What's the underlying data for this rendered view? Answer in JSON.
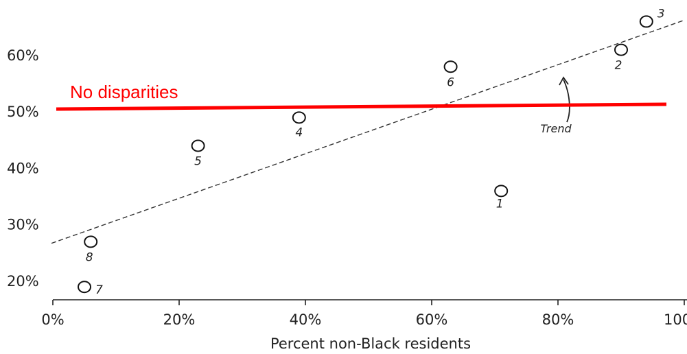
{
  "chart_data": {
    "type": "scatter",
    "title": "",
    "xlabel": "Percent non-Black residents",
    "ylabel": "",
    "xlim": [
      0,
      100
    ],
    "ylim": [
      15,
      68
    ],
    "x_ticks": [
      {
        "value": 0,
        "label": "0%"
      },
      {
        "value": 20,
        "label": "20%"
      },
      {
        "value": 40,
        "label": "40%"
      },
      {
        "value": 60,
        "label": "60%"
      },
      {
        "value": 80,
        "label": "80%"
      },
      {
        "value": 100,
        "label": "100%"
      }
    ],
    "y_ticks": [
      {
        "value": 20,
        "label": "20%"
      },
      {
        "value": 30,
        "label": "30%"
      },
      {
        "value": 40,
        "label": "40%"
      },
      {
        "value": 50,
        "label": "50%"
      },
      {
        "value": 60,
        "label": "60%"
      }
    ],
    "points": [
      {
        "label": "1",
        "x": 71,
        "y": 36
      },
      {
        "label": "2",
        "x": 90,
        "y": 61
      },
      {
        "label": "3",
        "x": 94,
        "y": 66
      },
      {
        "label": "4",
        "x": 39,
        "y": 49
      },
      {
        "label": "5",
        "x": 23,
        "y": 44
      },
      {
        "label": "6",
        "x": 63,
        "y": 58
      },
      {
        "label": "7",
        "x": 5,
        "y": 19
      },
      {
        "label": "8",
        "x": 6,
        "y": 27
      }
    ],
    "trend_line": {
      "label": "Trend",
      "x": [
        0,
        100
      ],
      "y": [
        26,
        66
      ],
      "style": "dashed"
    },
    "reference_line": {
      "label": "No disparities",
      "x": [
        0,
        97
      ],
      "y": [
        50,
        51
      ],
      "color": "#ff0000"
    },
    "grid": false
  }
}
